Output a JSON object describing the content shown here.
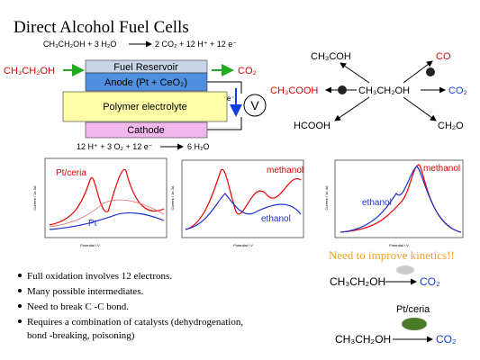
{
  "title": "Direct Alcohol Fuel Cells",
  "cell": {
    "anode_equation": {
      "left": "CH₃CH₂OH + 3 H₂O",
      "right": "2 CO₂ + 12 H⁺ + 12 e⁻"
    },
    "fuel_in": "CH₃CH₂OH",
    "product_out": "CO₂",
    "layers": {
      "reservoir": "Fuel Reservoir",
      "anode": "Anode (Pt + CeO₂)",
      "electrolyte": "Polymer electrolyte",
      "cathode": "Cathode"
    },
    "electron": "e⁻",
    "meter": "V",
    "cathode_equation": {
      "left": "12 H⁺ + 3 O₂ + 12 e⁻",
      "right": "6 H₂O"
    }
  },
  "pathways": {
    "center": "CH₃CH₂OH",
    "products": [
      "CH₃COH",
      "CO",
      "CH₃COOH",
      "CO₂",
      "HCOOH",
      "CH₂O"
    ]
  },
  "plots": [
    {
      "labels": [
        "Pt/ceria",
        "Pt"
      ],
      "ylabel": "Current / 1e-3A",
      "xlabel": "Potential / V"
    },
    {
      "labels": [
        "methanol",
        "ethanol"
      ],
      "ylabel": "Current / 1e-3A",
      "xlabel": "Potential / V"
    },
    {
      "labels": [
        "methanol",
        "ethanol"
      ],
      "ylabel": "Current / 1e-4A",
      "xlabel": "Potential / V"
    }
  ],
  "callout": "Need to improve kinetics!!",
  "bullets": [
    "Full oxidation involves 12 electrons.",
    "Many possible intermediates.",
    "Need to break C  -C bond.",
    "Requires a combination of catalysts (dehydrogenation,"
  ],
  "bullet_continuation": "bond -breaking, poisoning)",
  "reactions": [
    {
      "left": "CH₃CH₂OH",
      "right": "CO₂"
    },
    {
      "catalyst": "Pt/ceria",
      "left": "CH₃CH₂OH",
      "right": "CO₂"
    }
  ]
}
